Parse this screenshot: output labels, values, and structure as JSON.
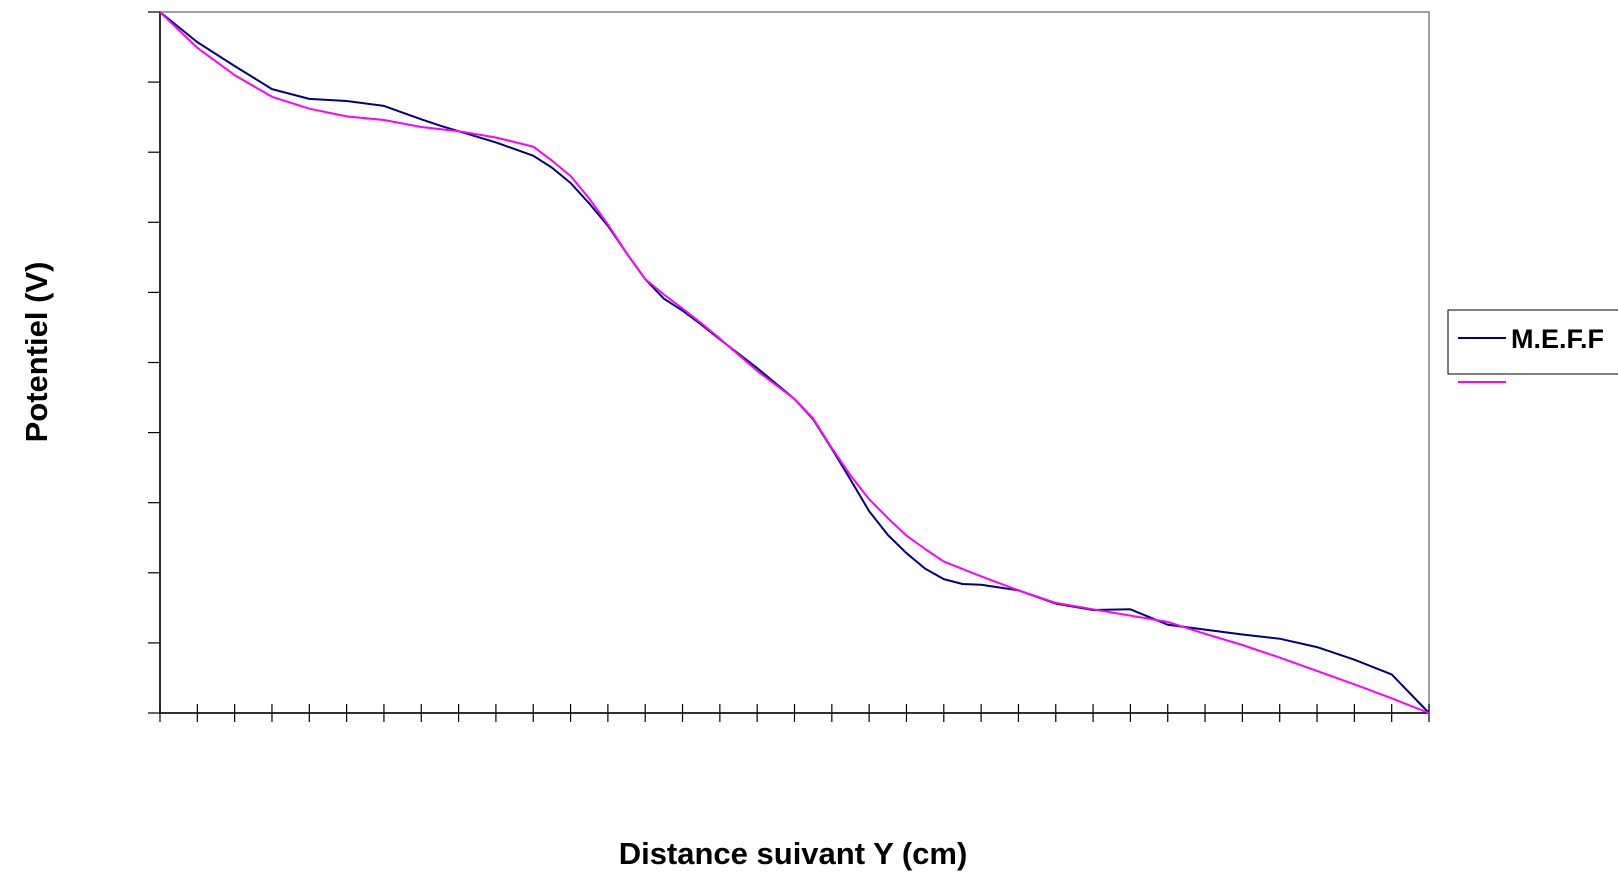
{
  "chart_data": {
    "type": "line",
    "title": "",
    "xlabel": "Distance suivant Y (cm)",
    "ylabel": "Potentiel (V)",
    "xlim": [
      0,
      34
    ],
    "ylim": [
      0,
      10
    ],
    "x_tick_count": 34,
    "y_tick_count": 10,
    "grid": false,
    "legend_position": "right",
    "series": [
      {
        "name": "M.E.F.F",
        "color": "#000080",
        "x": [
          0,
          1,
          2,
          3,
          4,
          5,
          6,
          7,
          7.5,
          8,
          9,
          10,
          10.5,
          11,
          11.5,
          12,
          12.5,
          13,
          13.5,
          14,
          14.5,
          15,
          16,
          17,
          17.5,
          18,
          18.5,
          19,
          19.5,
          20,
          20.5,
          21,
          21.5,
          22,
          23,
          24,
          25,
          26,
          27,
          28,
          29,
          30,
          31,
          32,
          33,
          34
        ],
        "values": [
          10,
          9.57,
          9.23,
          8.9,
          8.76,
          8.73,
          8.66,
          8.47,
          8.38,
          8.3,
          8.14,
          7.95,
          7.78,
          7.56,
          7.27,
          6.95,
          6.56,
          6.19,
          5.91,
          5.74,
          5.54,
          5.33,
          4.92,
          4.48,
          4.19,
          3.77,
          3.33,
          2.88,
          2.54,
          2.28,
          2.06,
          1.91,
          1.84,
          1.83,
          1.75,
          1.56,
          1.47,
          1.48,
          1.26,
          1.19,
          1.12,
          1.06,
          0.94,
          0.76,
          0.55,
          0
        ]
      },
      {
        "name": "",
        "color": "#ff00ff",
        "x": [
          0,
          1,
          2,
          3,
          4,
          5,
          6,
          7,
          8,
          9,
          10,
          10.5,
          11,
          11.5,
          12,
          12.5,
          13,
          13.5,
          14,
          14.5,
          15,
          16,
          17,
          17.5,
          18,
          18.5,
          19,
          19.5,
          20,
          20.5,
          21,
          22,
          23,
          24,
          25,
          26,
          27,
          28,
          29,
          30,
          31,
          32,
          33,
          34
        ],
        "values": [
          10,
          9.49,
          9.1,
          8.79,
          8.62,
          8.51,
          8.46,
          8.36,
          8.3,
          8.21,
          8.08,
          7.88,
          7.66,
          7.34,
          6.97,
          6.56,
          6.19,
          5.97,
          5.77,
          5.56,
          5.34,
          4.88,
          4.48,
          4.2,
          3.78,
          3.39,
          3.05,
          2.78,
          2.53,
          2.34,
          2.16,
          1.95,
          1.75,
          1.57,
          1.48,
          1.39,
          1.3,
          1.13,
          0.97,
          0.79,
          0.6,
          0.41,
          0.21,
          0
        ]
      }
    ]
  }
}
